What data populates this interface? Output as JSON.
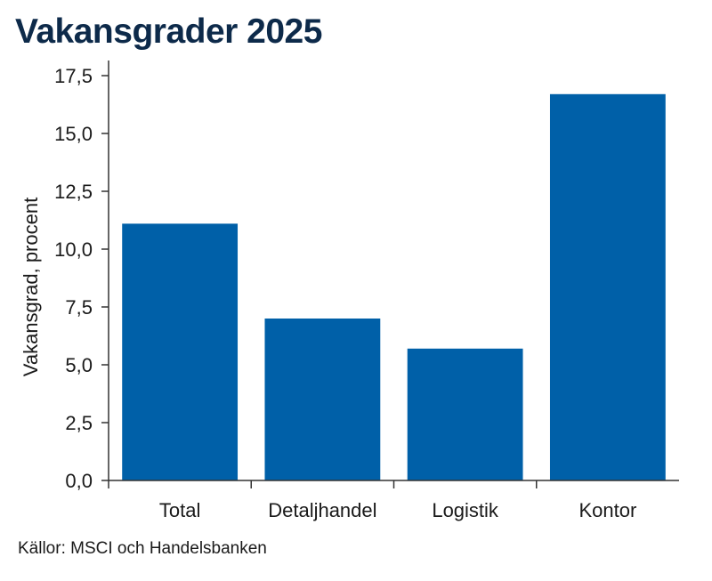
{
  "title": "Vakansgrader 2025",
  "source": "Källor: MSCI och Handelsbanken",
  "colors": {
    "bar": "#0060a8",
    "title": "#0d2a4a",
    "axis": "#333333"
  },
  "chart_data": {
    "type": "bar",
    "title": "Vakansgrader 2025",
    "xlabel": "",
    "ylabel": "Vakansgrad, procent",
    "categories": [
      "Total",
      "Detaljhandel",
      "Logistik",
      "Kontor"
    ],
    "values": [
      11.1,
      7.0,
      5.7,
      16.7
    ],
    "ylim": [
      0,
      17.5
    ],
    "yticks": [
      0,
      2.5,
      5,
      7.5,
      10,
      12.5,
      15,
      17.5
    ],
    "ytick_labels": [
      "0,0",
      "2,5",
      "5,0",
      "7,5",
      "10,0",
      "12,5",
      "15,0",
      "17,5"
    ],
    "grid": false,
    "legend": "none"
  }
}
